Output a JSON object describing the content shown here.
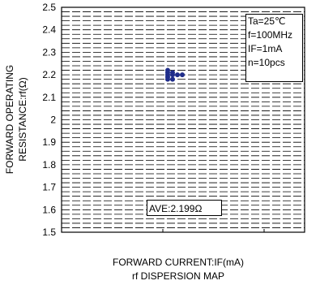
{
  "chart_data": {
    "type": "scatter",
    "ylabel_line1": "FORWARD OPERATING",
    "ylabel_line2": "RESISTANCE:rf(Ω)",
    "xlabel": "FORWARD CURRENT:IF(mA)",
    "title": "rf DISPERSION MAP",
    "ylim": [
      1.5,
      2.5
    ],
    "yticks": [
      "2.5",
      "2.4",
      "2.3",
      "2.2",
      "2.1",
      "2",
      "1.9",
      "1.8",
      "1.7",
      "1.6",
      "1.5"
    ],
    "minor_step": 0.02,
    "conditions": [
      "Ta=25℃",
      "f=100MHz",
      "IF=1mA",
      "n=10pcs"
    ],
    "average_label": "AVE:2.199Ω",
    "point_color": "#1f2d8a",
    "points": [
      {
        "col": 0,
        "y": 2.22
      },
      {
        "col": 0,
        "y": 2.21
      },
      {
        "col": 0,
        "y": 2.2
      },
      {
        "col": 0,
        "y": 2.19
      },
      {
        "col": 0,
        "y": 2.18
      },
      {
        "col": 1,
        "y": 2.21
      },
      {
        "col": 1,
        "y": 2.2
      },
      {
        "col": 1,
        "y": 2.18
      },
      {
        "col": 2,
        "y": 2.2
      },
      {
        "col": 3,
        "y": 2.2
      }
    ]
  }
}
